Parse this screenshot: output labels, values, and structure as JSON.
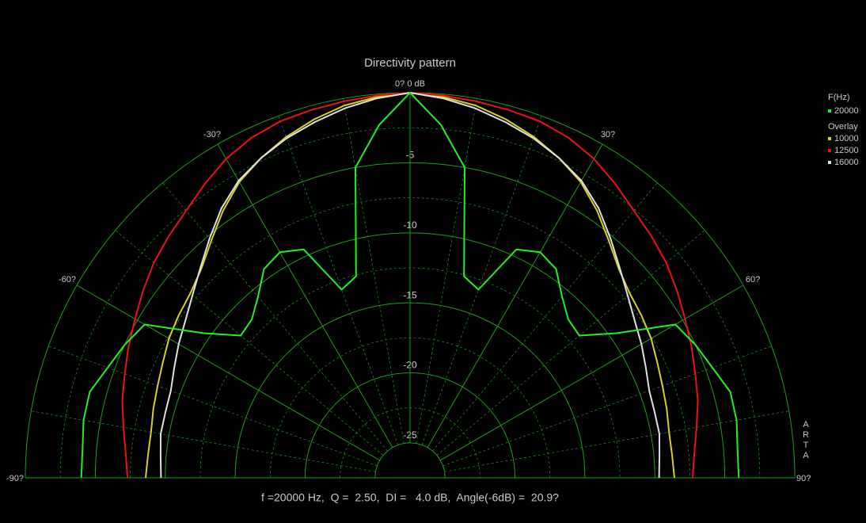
{
  "chart_data": {
    "type": "polar",
    "title": "Directivity pattern",
    "x": [
      -90,
      -85,
      -80,
      -75,
      -70,
      -65,
      -60,
      -55,
      -50,
      -45,
      -40,
      -35,
      -30,
      -25,
      -20,
      -15,
      -10,
      -5,
      0,
      5,
      10,
      15,
      20,
      25,
      30,
      35,
      40,
      45,
      50,
      55,
      60,
      65,
      70,
      75,
      80,
      85,
      90
    ],
    "series": [
      {
        "name": "20000",
        "color": "#22ee22",
        "overlay": false,
        "values": [
          -4.0,
          -4.0,
          -3.8,
          -3.8,
          -4.5,
          -5.0,
          -5.6,
          -9.5,
          -11.7,
          -11.5,
          -10.6,
          -9.3,
          -8.9,
          -9.5,
          -13.2,
          -12.6,
          -5.0,
          -2.2,
          0,
          -2.2,
          -5.0,
          -12.6,
          -13.2,
          -9.5,
          -8.9,
          -9.3,
          -10.6,
          -11.5,
          -11.7,
          -9.5,
          -5.6,
          -5.0,
          -4.5,
          -3.8,
          -3.8,
          -4.0,
          -4.0
        ]
      },
      {
        "name": "10000",
        "color": "#d8d020",
        "overlay": true,
        "values": [
          -8.6,
          -8.7,
          -8.7,
          -8.5,
          -8.3,
          -8.0,
          -7.6,
          -7.3,
          -7.0,
          -6.4,
          -5.4,
          -4.2,
          -3.1,
          -2.3,
          -1.6,
          -1.0,
          -0.5,
          -0.2,
          0,
          -0.2,
          -0.5,
          -1.0,
          -1.6,
          -2.3,
          -3.1,
          -4.2,
          -5.4,
          -6.4,
          -7.0,
          -7.3,
          -7.6,
          -8.0,
          -8.3,
          -8.5,
          -8.7,
          -8.7,
          -8.6
        ]
      },
      {
        "name": "12500",
        "color": "#ee1111",
        "overlay": true,
        "values": [
          -7.3,
          -7.1,
          -6.7,
          -6.2,
          -5.8,
          -5.3,
          -4.8,
          -4.2,
          -3.6,
          -3.1,
          -2.6,
          -1.9,
          -1.2,
          -0.7,
          -0.4,
          -0.3,
          -0.2,
          -0.1,
          0,
          -0.1,
          -0.2,
          -0.3,
          -0.4,
          -0.7,
          -1.2,
          -1.9,
          -2.6,
          -3.1,
          -3.6,
          -4.2,
          -4.8,
          -5.3,
          -5.8,
          -6.2,
          -6.7,
          -7.1,
          -7.3
        ]
      },
      {
        "name": "16000",
        "color": "#e0e0e0",
        "overlay": true,
        "values": [
          -9.7,
          -9.6,
          -9.4,
          -9.4,
          -9.3,
          -8.9,
          -8.4,
          -7.9,
          -7.2,
          -6.3,
          -5.2,
          -4.0,
          -3.0,
          -2.3,
          -1.7,
          -1.2,
          -0.7,
          -0.3,
          0,
          -0.3,
          -0.7,
          -1.2,
          -1.7,
          -2.3,
          -3.0,
          -4.0,
          -5.2,
          -6.3,
          -7.2,
          -7.9,
          -8.4,
          -8.9,
          -9.3,
          -9.4,
          -9.4,
          -9.6,
          -9.7
        ]
      }
    ],
    "xlim": [
      -90,
      90
    ],
    "xticks": [
      {
        "value": -90,
        "label": "-90?"
      },
      {
        "value": -60,
        "label": "-60?"
      },
      {
        "value": -30,
        "label": "-30?"
      },
      {
        "value": 0,
        "label": "0? 0 dB"
      },
      {
        "value": 30,
        "label": "30?"
      },
      {
        "value": 60,
        "label": "60?"
      },
      {
        "value": 90,
        "label": "90?"
      }
    ],
    "rlim": [
      -27.5,
      0
    ],
    "rticks": [
      -5,
      -10,
      -15,
      -20,
      -25
    ],
    "legend_title": "F(Hz)",
    "overlay_title": "Overlay",
    "footer": "f =20000 Hz,  Q =  2.50,  DI =   4.0 dB,  Angle(-6dB) =  20.9?",
    "watermark": "ARTA",
    "grid": true
  }
}
